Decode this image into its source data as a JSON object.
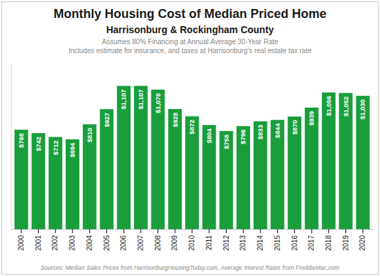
{
  "chart_data": {
    "type": "bar",
    "title": "Monthly Housing Cost of Median Priced Home",
    "subtitle": "Harrisonburg & Rockingham County",
    "annotations": [
      "Assumes 80% Financing at Annual Average 30-Year Rate",
      "Includes estimate for insurance, and taxes at Harrisonburg's real estate tax rate",
      "Sources: Median Sales Prices from HarrisonburgHousingToday.com, Average Interest Rates from FreddieMac.com"
    ],
    "categories": [
      "2000",
      "2001",
      "2002",
      "2003",
      "2004",
      "2005",
      "2006",
      "2007",
      "2008",
      "2009",
      "2010",
      "2011",
      "2012",
      "2013",
      "2014",
      "2015",
      "2016",
      "2017",
      "2018",
      "2019",
      "2020"
    ],
    "values": [
      768,
      742,
      712,
      694,
      810,
      927,
      1107,
      1107,
      1078,
      928,
      872,
      804,
      758,
      796,
      833,
      844,
      870,
      939,
      1056,
      1052,
      1030
    ],
    "value_labels": [
      "$768",
      "$742",
      "$712",
      "$694",
      "$810",
      "$927",
      "$1,107",
      "$1,107",
      "$1,078",
      "$928",
      "$872",
      "$804",
      "$758",
      "$796",
      "$833",
      "$844",
      "$870",
      "$939",
      "$1,056",
      "$1,052",
      "$1,030"
    ],
    "color": "#1a9e3c",
    "ylim": [
      0,
      1280
    ],
    "grid": false,
    "data_labels": true,
    "tick_labels": "x"
  }
}
